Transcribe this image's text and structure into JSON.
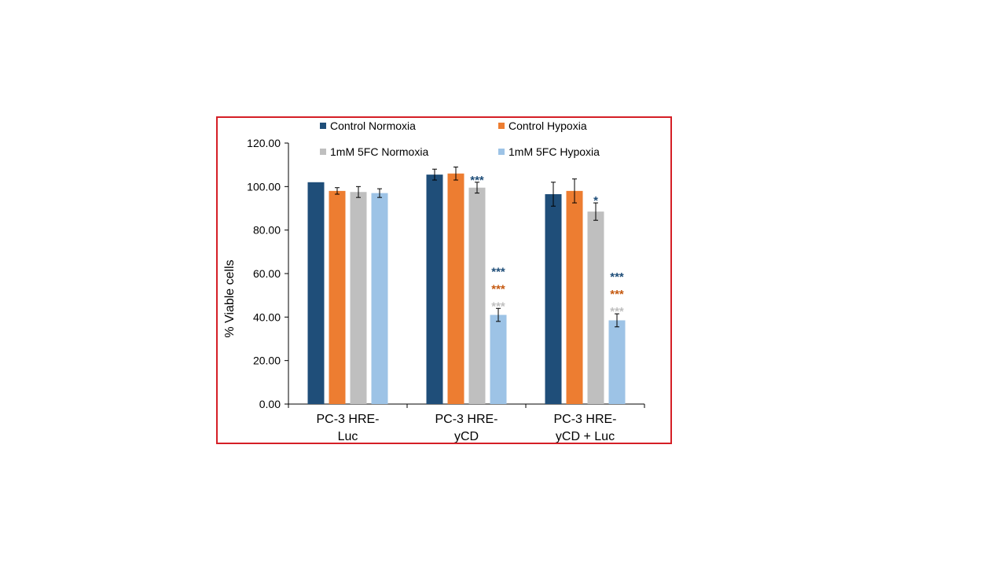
{
  "chart_data": {
    "type": "bar",
    "ylabel": "% Viable cells",
    "ylim": [
      0,
      120
    ],
    "yticks": [
      "0.00",
      "20.00",
      "40.00",
      "60.00",
      "80.00",
      "100.00",
      "120.00"
    ],
    "categories": [
      [
        "PC-3 HRE-",
        "Luc"
      ],
      [
        "PC-3 HRE-",
        "yCD"
      ],
      [
        "PC-3 HRE-",
        "yCD + Luc"
      ]
    ],
    "series": [
      {
        "name": "Control Normoxia",
        "color": "#1f4e79",
        "values": [
          102.0,
          105.5,
          96.5
        ],
        "errors": [
          0.0,
          2.5,
          5.5
        ]
      },
      {
        "name": "Control Hypoxia",
        "color": "#ed7d31",
        "values": [
          98.0,
          106.0,
          98.0
        ],
        "errors": [
          1.5,
          3.0,
          5.5
        ]
      },
      {
        "name": "1mM 5FC Normoxia",
        "color": "#bfbfbf",
        "values": [
          97.5,
          99.5,
          88.5
        ],
        "errors": [
          2.5,
          2.5,
          4.0
        ]
      },
      {
        "name": "1mM 5FC Hypoxia",
        "color": "#9dc3e6",
        "values": [
          97.0,
          41.0,
          38.5
        ],
        "errors": [
          2.0,
          3.0,
          3.0
        ]
      }
    ],
    "legend_position": "top",
    "grid": false,
    "annotations": [
      {
        "category": 1,
        "series": 2,
        "lines": [
          {
            "text": "***",
            "color": "#1f4e79"
          }
        ]
      },
      {
        "category": 1,
        "series": 3,
        "lines": [
          {
            "text": "***",
            "color": "#1f4e79"
          },
          {
            "text": "***",
            "color": "#c55a11"
          },
          {
            "text": "***",
            "color": "#bfbfbf"
          }
        ]
      },
      {
        "category": 2,
        "series": 2,
        "lines": [
          {
            "text": "*",
            "color": "#1f4e79"
          }
        ]
      },
      {
        "category": 2,
        "series": 3,
        "lines": [
          {
            "text": "***",
            "color": "#1f4e79"
          },
          {
            "text": "***",
            "color": "#c55a11"
          },
          {
            "text": "***",
            "color": "#bfbfbf"
          }
        ]
      }
    ]
  },
  "colors": {
    "frame_border": "#d51f26"
  }
}
